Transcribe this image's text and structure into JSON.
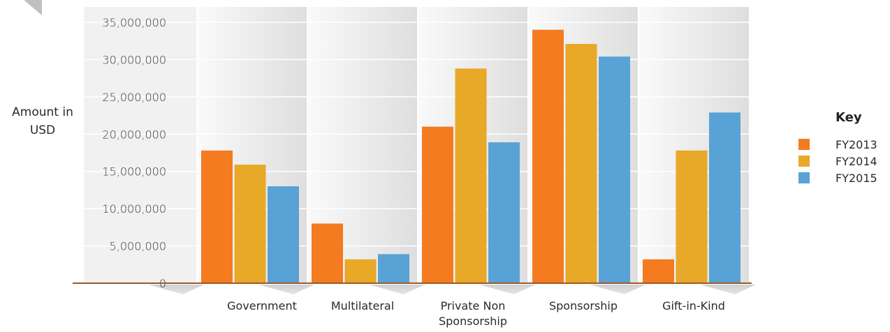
{
  "chart_data": {
    "type": "bar",
    "ylabel": [
      "Amount in",
      "USD"
    ],
    "categories": [
      [
        "Government"
      ],
      [
        "Multilateral"
      ],
      [
        "Private Non",
        "Sponsorship"
      ],
      [
        "Sponsorship"
      ],
      [
        "Gift-in-Kind"
      ]
    ],
    "series": [
      {
        "name": "FY2013",
        "color": "#f47b20",
        "values": [
          17800000,
          8000000,
          21000000,
          34000000,
          3200000
        ]
      },
      {
        "name": "FY2014",
        "color": "#e8a828",
        "values": [
          15900000,
          3200000,
          28800000,
          32100000,
          17800000
        ]
      },
      {
        "name": "FY2015",
        "color": "#58a2d6",
        "values": [
          13000000,
          3900000,
          18900000,
          30400000,
          22900000
        ]
      }
    ],
    "ylim": [
      0,
      35000000
    ],
    "yticks": [
      0,
      5000000,
      10000000,
      15000000,
      20000000,
      25000000,
      30000000,
      35000000
    ],
    "ytick_labels": [
      "0",
      "5,000,000",
      "10,000,000",
      "15,000,000",
      "20,000,000",
      "25,000,000",
      "30,000,000",
      "35,000,000"
    ],
    "grid": true,
    "legend": {
      "title": "Key",
      "position": "right"
    }
  }
}
